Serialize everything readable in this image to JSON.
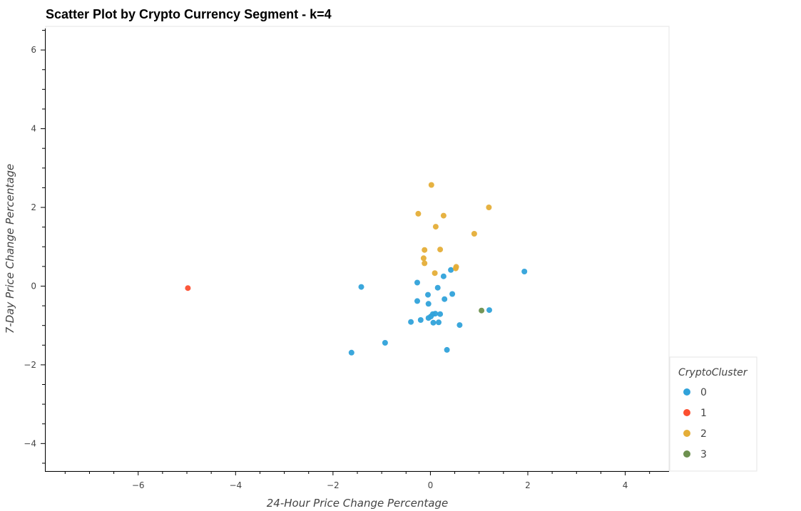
{
  "chart_data": {
    "type": "scatter",
    "title": "Scatter Plot by Crypto Currency Segment - k=4",
    "xlabel": "24-Hour Price Change Percentage",
    "ylabel": "7-Day Price Change Percentage",
    "xlim": [
      -7.9,
      4.9
    ],
    "ylim": [
      -4.7,
      6.6
    ],
    "xticks": [
      -6,
      -4,
      -2,
      0,
      2,
      4
    ],
    "yticks": [
      -4,
      -2,
      0,
      2,
      4,
      6
    ],
    "xtick_labels": [
      "−6",
      "−4",
      "−2",
      "0",
      "2",
      "4"
    ],
    "ytick_labels": [
      "−4",
      "−2",
      "0",
      "2",
      "4",
      "6"
    ],
    "grid": false,
    "legend": {
      "title": "CryptoCluster",
      "placement": "right-bottom",
      "entries": [
        "0",
        "1",
        "2",
        "3"
      ]
    },
    "series": [
      {
        "name": "0",
        "color": "#30a2da",
        "points": [
          [
            -1.42,
            -0.02
          ],
          [
            -0.27,
            0.09
          ],
          [
            -0.05,
            -0.22
          ],
          [
            0.15,
            -0.04
          ],
          [
            0.27,
            0.25
          ],
          [
            0.42,
            0.41
          ],
          [
            1.93,
            0.37
          ],
          [
            -0.27,
            -0.38
          ],
          [
            -0.04,
            -0.45
          ],
          [
            0.29,
            -0.33
          ],
          [
            0.45,
            -0.2
          ],
          [
            0.01,
            -0.77
          ],
          [
            0.05,
            -0.71
          ],
          [
            0.1,
            -0.7
          ],
          [
            0.2,
            -0.71
          ],
          [
            1.21,
            -0.61
          ],
          [
            -0.04,
            -0.81
          ],
          [
            -0.2,
            -0.86
          ],
          [
            -0.4,
            -0.91
          ],
          [
            0.06,
            -0.93
          ],
          [
            0.17,
            -0.92
          ],
          [
            0.6,
            -0.99
          ],
          [
            -0.93,
            -1.44
          ],
          [
            -1.62,
            -1.69
          ],
          [
            0.34,
            -1.62
          ]
        ]
      },
      {
        "name": "1",
        "color": "#fc4f30",
        "points": [
          [
            -4.98,
            -0.05
          ]
        ]
      },
      {
        "name": "2",
        "color": "#e5ae38",
        "points": [
          [
            0.02,
            2.57
          ],
          [
            -0.25,
            1.84
          ],
          [
            0.27,
            1.79
          ],
          [
            1.2,
            2.0
          ],
          [
            0.11,
            1.51
          ],
          [
            0.9,
            1.33
          ],
          [
            -0.12,
            0.92
          ],
          [
            0.2,
            0.93
          ],
          [
            -0.14,
            0.71
          ],
          [
            -0.12,
            0.58
          ],
          [
            0.53,
            0.49
          ],
          [
            0.52,
            0.45
          ],
          [
            0.09,
            0.33
          ]
        ]
      },
      {
        "name": "3",
        "color": "#6d904f",
        "points": [
          [
            1.05,
            -0.62
          ]
        ]
      }
    ]
  }
}
